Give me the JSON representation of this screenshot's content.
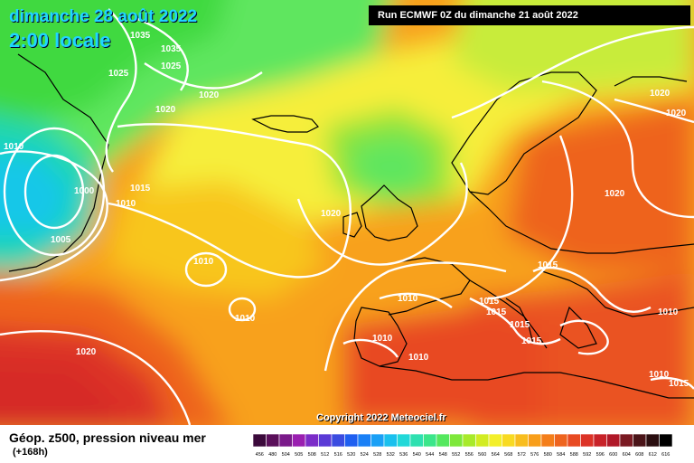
{
  "map": {
    "date_label": "dimanche 28 août 2022",
    "time_label": "2:00 locale",
    "run_label": "Run ECMWF 0Z du dimanche 21 août 2022",
    "copyright": "Copyright 2022 Meteociel.fr",
    "model": "ECMWF",
    "projection_area": "North Atlantic and Europe",
    "isobar_labels": [
      "1035",
      "1035",
      "1025",
      "1025",
      "1020",
      "1020",
      "1010",
      "1000",
      "1015",
      "1010",
      "1005",
      "1020",
      "1020",
      "1020",
      "1020",
      "1015",
      "1010",
      "1010",
      "1010",
      "1015",
      "1015",
      "1015",
      "1015",
      "1010",
      "1010",
      "1020",
      "1010",
      "1010",
      "1015"
    ]
  },
  "legend": {
    "title": "Géop. z500, pression niveau mer",
    "subtitle": "(+168h)",
    "scale_labels": [
      "456",
      "480",
      "504",
      "505",
      "508",
      "512",
      "516",
      "520",
      "524",
      "528",
      "532",
      "536",
      "540",
      "544",
      "548",
      "552",
      "556",
      "560",
      "564",
      "568",
      "572",
      "576",
      "580",
      "584",
      "588",
      "592",
      "596",
      "600",
      "604",
      "608",
      "612",
      "616"
    ],
    "scale_colors": [
      "#3b0a3b",
      "#5a0f5a",
      "#7a1a8a",
      "#9a1fb0",
      "#7b2cc8",
      "#5a3ad6",
      "#3b4ce0",
      "#1f5ff0",
      "#1a80f6",
      "#1aa0f6",
      "#1ac0ee",
      "#22d8d8",
      "#2ee0b0",
      "#3be68a",
      "#54e85e",
      "#7ee83a",
      "#a8ea2a",
      "#d2ec22",
      "#f3ef2a",
      "#f8da22",
      "#f8bd1e",
      "#f89e1a",
      "#f47e1a",
      "#ee641e",
      "#e84a22",
      "#dc3226",
      "#c82228",
      "#b01828",
      "#7a1a22",
      "#4a1418",
      "#2a0e10",
      "#000000"
    ]
  }
}
